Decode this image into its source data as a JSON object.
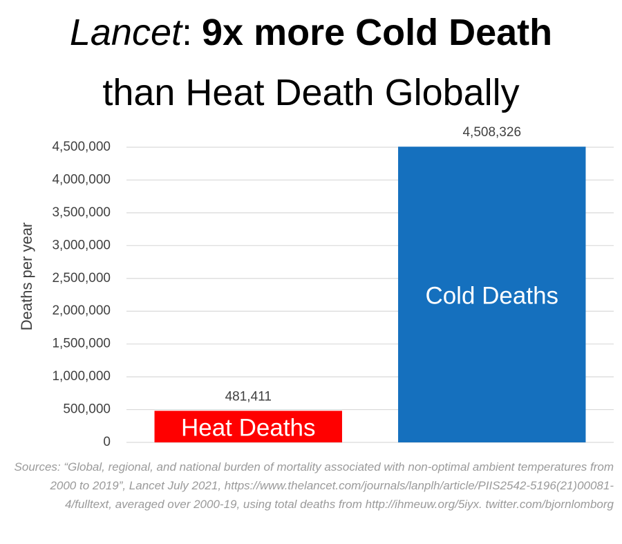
{
  "chart_data": {
    "type": "bar",
    "title": [
      "Lancet",
      ":",
      "9x more Cold Death",
      "than Heat Death Globally"
    ],
    "y_label": "Deaths per year",
    "categories": [
      "Heat Deaths",
      "Cold Deaths"
    ],
    "values": [
      481411,
      4508326
    ],
    "value_labels": [
      "481,411",
      "4,508,326"
    ],
    "colors": [
      "#ff0000",
      "#1570be"
    ],
    "ylim": [
      0,
      4500000
    ],
    "yticks": [
      0,
      {
        "value": 500000,
        "label": "500,000"
      },
      {
        "value": 1000000,
        "label": "1,000,000"
      },
      {
        "value": 1500000,
        "label": "1,500,000"
      },
      {
        "value": 2000000,
        "label": "2,000,000"
      },
      {
        "value": 2500000,
        "label": "2,500,000"
      },
      {
        "value": 3000000,
        "label": "3,000,000"
      },
      {
        "value": 3500000,
        "label": "3,500,000"
      },
      {
        "value": 4000000,
        "label": "4,000,000"
      },
      {
        "value": 4500000,
        "label": "4,500,000"
      }
    ],
    "grid": true,
    "note": "Sources: “Global, regional, and national burden of mortality associated with non-optimal ambient temperatures from 2000 to 2019”, Lancet July 2021, https://www.thelancet.com/journals/lanplh/article/PIIS2542-5196(21)00081-4/fulltext, averaged over 2000-19, using total deaths from http://ihmeuw.org/5iyx. twitter.com/bjornlomborg"
  }
}
